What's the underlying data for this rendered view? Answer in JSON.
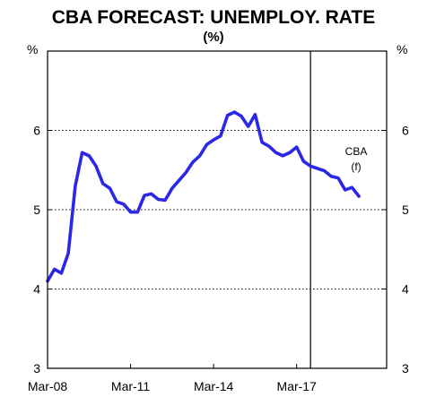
{
  "chart_data": {
    "type": "line",
    "title": "CBA FORECAST: UNEMPLOY. RATE",
    "subtitle": "(%)",
    "unit_left": "%",
    "unit_right": "%",
    "ylim": [
      3,
      7
    ],
    "yticks": [
      "3",
      "4",
      "5",
      "6"
    ],
    "xlim": [
      "2008-03",
      "2020-06"
    ],
    "xticks": [
      {
        "label": "Mar-08",
        "value": "2008-03"
      },
      {
        "label": "Mar-11",
        "value": "2011-03"
      },
      {
        "label": "Mar-14",
        "value": "2014-03"
      },
      {
        "label": "Mar-17",
        "value": "2017-03"
      }
    ],
    "grid": "horizontal-dotted",
    "forecast_start": "2017-09",
    "annotation": [
      "CBA",
      "(f)"
    ],
    "series": [
      {
        "color": "#2a27e6",
        "x": [
          "2008-03",
          "2008-06",
          "2008-09",
          "2008-12",
          "2009-03",
          "2009-06",
          "2009-09",
          "2009-12",
          "2010-03",
          "2010-06",
          "2010-09",
          "2010-12",
          "2011-03",
          "2011-06",
          "2011-09",
          "2011-12",
          "2012-03",
          "2012-06",
          "2012-09",
          "2012-12",
          "2013-03",
          "2013-06",
          "2013-09",
          "2013-12",
          "2014-03",
          "2014-06",
          "2014-09",
          "2014-12",
          "2015-03",
          "2015-06",
          "2015-09",
          "2015-12",
          "2016-03",
          "2016-06",
          "2016-09",
          "2016-12",
          "2017-03",
          "2017-06",
          "2017-09",
          "2017-12",
          "2018-03",
          "2018-06",
          "2018-09",
          "2018-12",
          "2019-03",
          "2019-06"
        ],
        "values": [
          4.1,
          4.25,
          4.2,
          4.45,
          5.3,
          5.72,
          5.68,
          5.55,
          5.33,
          5.27,
          5.1,
          5.07,
          4.97,
          4.97,
          5.18,
          5.2,
          5.13,
          5.12,
          5.27,
          5.37,
          5.47,
          5.6,
          5.68,
          5.82,
          5.88,
          5.93,
          6.19,
          6.23,
          6.18,
          6.05,
          6.2,
          5.85,
          5.8,
          5.72,
          5.68,
          5.72,
          5.79,
          5.61,
          5.55,
          5.52,
          5.49,
          5.42,
          5.4,
          5.25,
          5.28,
          5.17
        ]
      }
    ]
  }
}
